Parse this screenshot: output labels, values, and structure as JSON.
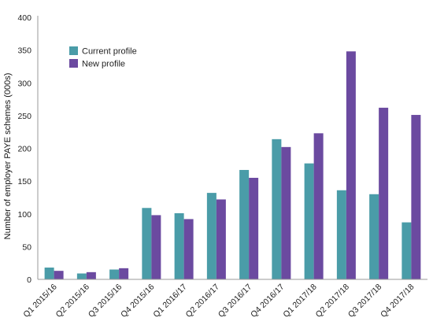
{
  "chart_data": {
    "type": "bar",
    "title": "",
    "xlabel": "",
    "ylabel": "Number of employer PAYE schemes (000s)",
    "ylim": [
      0,
      400
    ],
    "yticks": [
      0,
      50,
      100,
      150,
      200,
      250,
      300,
      350,
      400
    ],
    "grid": false,
    "legend_position": "top-left",
    "categories": [
      "Q1 2015/16",
      "Q2 2015/16",
      "Q3 2015/16",
      "Q4 2015/16",
      "Q1 2016/17",
      "Q2 2016/17",
      "Q3 2016/17",
      "Q4 2016/17",
      "Q1 2017/18",
      "Q2 2017/18",
      "Q3 2017/18",
      "Q4 2017/18"
    ],
    "series": [
      {
        "name": "Current profile",
        "color": "#4a9ca8",
        "values": [
          18,
          9,
          15,
          109,
          101,
          132,
          167,
          214,
          177,
          136,
          130,
          87
        ]
      },
      {
        "name": "New profile",
        "color": "#6b4aa0",
        "values": [
          13,
          11,
          17,
          98,
          92,
          122,
          155,
          202,
          223,
          348,
          262,
          251
        ]
      }
    ]
  }
}
